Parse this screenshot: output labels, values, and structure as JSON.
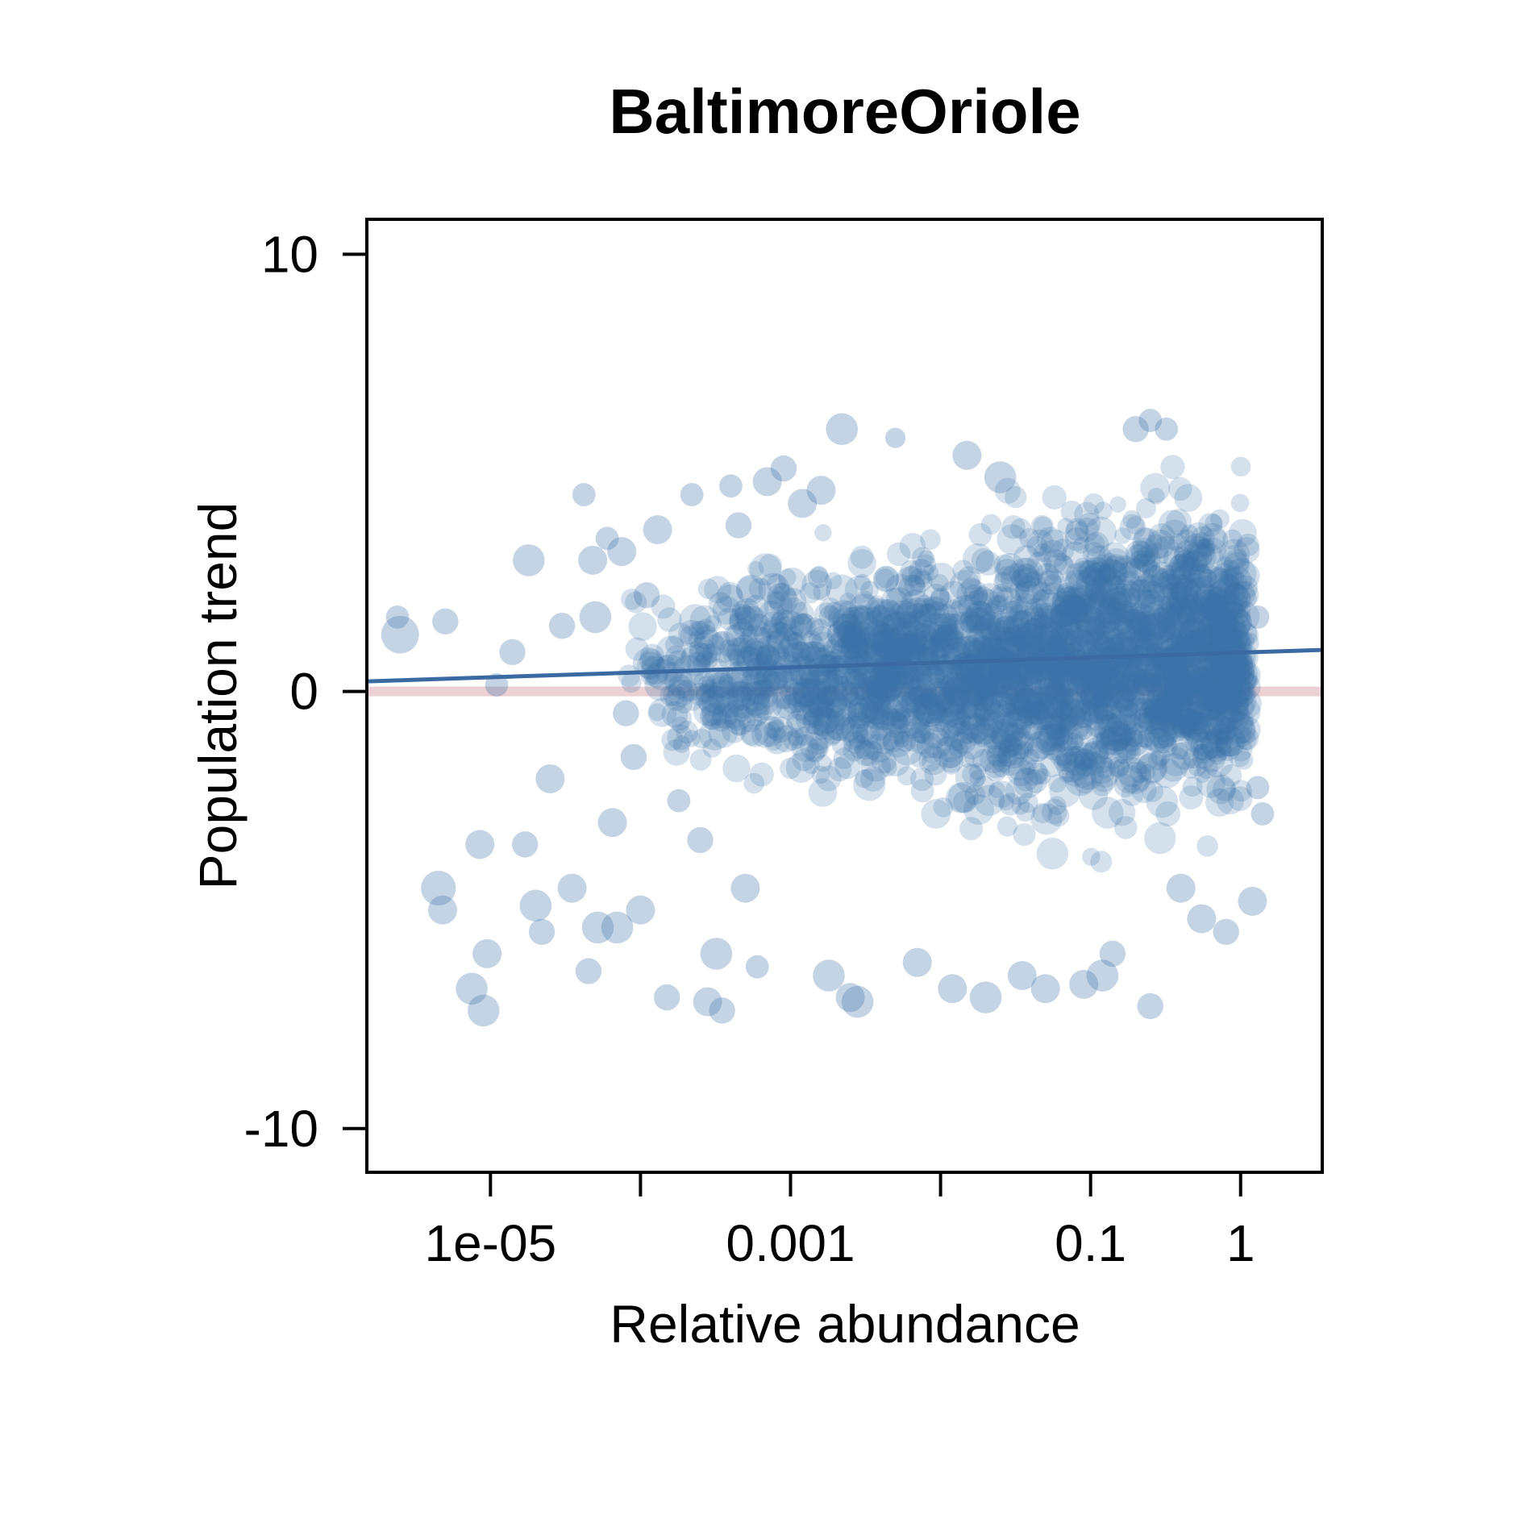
{
  "chart_data": {
    "type": "scatter",
    "title": "BaltimoreOriole",
    "xlabel": "Relative abundance",
    "ylabel": "Population trend",
    "x_scale": "log10",
    "xlim": [
      1.5e-06,
      3.5
    ],
    "ylim": [
      -11,
      10.8
    ],
    "x_ticks": [
      1e-05,
      0.0001,
      0.001,
      0.01,
      0.1,
      1
    ],
    "x_tick_labels": [
      "1e-05",
      "",
      "0.001",
      "",
      "0.1",
      "1"
    ],
    "y_ticks": [
      10,
      0,
      -10
    ],
    "y_tick_labels": [
      "10",
      "0",
      "-10"
    ],
    "grid": false,
    "legend": "none",
    "reference_line": {
      "y": 0,
      "color": "#e8c8cc"
    },
    "trend_line": {
      "x": [
        1.5e-06,
        3.5
      ],
      "y": [
        0.23,
        0.95
      ],
      "color": "#3b6aa3"
    },
    "point_color": "#3d70a8",
    "points": [
      {
        "x": 2.5e-06,
        "y": 1.3,
        "s": 1.3
      },
      {
        "x": 2.4e-06,
        "y": 1.7,
        "s": 0.8
      },
      {
        "x": 5e-06,
        "y": 1.6,
        "s": 0.9
      },
      {
        "x": 4.5e-06,
        "y": -4.5,
        "s": 1.2
      },
      {
        "x": 4.8e-06,
        "y": -5.0,
        "s": 1.0
      },
      {
        "x": 8.5e-06,
        "y": -3.5,
        "s": 1.0
      },
      {
        "x": 9.5e-06,
        "y": -6.0,
        "s": 1.0
      },
      {
        "x": 7.5e-06,
        "y": -6.8,
        "s": 1.1
      },
      {
        "x": 9e-06,
        "y": -7.3,
        "s": 1.1
      },
      {
        "x": 1.1e-05,
        "y": 0.15,
        "s": 0.8
      },
      {
        "x": 1.4e-05,
        "y": 0.9,
        "s": 0.9
      },
      {
        "x": 1.7e-05,
        "y": -3.5,
        "s": 0.9
      },
      {
        "x": 1.8e-05,
        "y": 3.0,
        "s": 1.1
      },
      {
        "x": 2e-05,
        "y": -4.9,
        "s": 1.1
      },
      {
        "x": 2.2e-05,
        "y": -5.5,
        "s": 0.9
      },
      {
        "x": 2.5e-05,
        "y": -2.0,
        "s": 1.0
      },
      {
        "x": 3e-05,
        "y": 1.5,
        "s": 0.9
      },
      {
        "x": 3.5e-05,
        "y": -4.5,
        "s": 1.0
      },
      {
        "x": 4.2e-05,
        "y": 4.5,
        "s": 0.8
      },
      {
        "x": 4.5e-05,
        "y": -6.4,
        "s": 0.9
      },
      {
        "x": 4.8e-05,
        "y": 3.0,
        "s": 1.0
      },
      {
        "x": 5e-05,
        "y": 1.7,
        "s": 1.1
      },
      {
        "x": 5.2e-05,
        "y": -5.4,
        "s": 1.1
      },
      {
        "x": 6e-05,
        "y": 3.5,
        "s": 0.8
      },
      {
        "x": 6.5e-05,
        "y": -3.0,
        "s": 1.0
      },
      {
        "x": 7e-05,
        "y": -5.4,
        "s": 1.1
      },
      {
        "x": 7.5e-05,
        "y": 3.2,
        "s": 1.0
      },
      {
        "x": 8e-05,
        "y": -0.5,
        "s": 0.9
      },
      {
        "x": 9e-05,
        "y": -1.5,
        "s": 0.9
      },
      {
        "x": 0.0001,
        "y": -5.0,
        "s": 1.0
      },
      {
        "x": 0.00011,
        "y": 2.2,
        "s": 0.9
      },
      {
        "x": 0.00013,
        "y": 3.7,
        "s": 1.0
      },
      {
        "x": 0.00015,
        "y": -7.0,
        "s": 0.9
      },
      {
        "x": 0.00018,
        "y": -2.5,
        "s": 0.8
      },
      {
        "x": 0.00022,
        "y": 4.5,
        "s": 0.8
      },
      {
        "x": 0.00025,
        "y": -3.4,
        "s": 0.9
      },
      {
        "x": 0.00028,
        "y": -7.1,
        "s": 1.0
      },
      {
        "x": 0.00032,
        "y": -6.0,
        "s": 1.1
      },
      {
        "x": 0.00035,
        "y": -7.3,
        "s": 0.9
      },
      {
        "x": 0.0004,
        "y": 4.7,
        "s": 0.8
      },
      {
        "x": 0.00045,
        "y": 3.8,
        "s": 0.9
      },
      {
        "x": 0.0005,
        "y": -4.5,
        "s": 1.0
      },
      {
        "x": 0.0006,
        "y": -6.3,
        "s": 0.8
      },
      {
        "x": 0.0007,
        "y": 4.8,
        "s": 1.0
      },
      {
        "x": 0.0009,
        "y": 5.1,
        "s": 0.9
      },
      {
        "x": 0.0012,
        "y": 4.3,
        "s": 1.0
      },
      {
        "x": 0.0016,
        "y": 4.6,
        "s": 1.0
      },
      {
        "x": 0.0018,
        "y": -6.5,
        "s": 1.1
      },
      {
        "x": 0.0022,
        "y": 6.0,
        "s": 1.1
      },
      {
        "x": 0.0025,
        "y": -7.0,
        "s": 1.0
      },
      {
        "x": 0.0028,
        "y": -7.1,
        "s": 1.1
      },
      {
        "x": 0.005,
        "y": 5.8,
        "s": 0.7
      },
      {
        "x": 0.007,
        "y": -6.2,
        "s": 1.0
      },
      {
        "x": 0.012,
        "y": -6.8,
        "s": 1.0
      },
      {
        "x": 0.015,
        "y": 5.4,
        "s": 1.0
      },
      {
        "x": 0.02,
        "y": -7.0,
        "s": 1.1
      },
      {
        "x": 0.025,
        "y": 4.9,
        "s": 1.1
      },
      {
        "x": 0.035,
        "y": -6.5,
        "s": 1.0
      },
      {
        "x": 0.05,
        "y": -6.8,
        "s": 1.0
      },
      {
        "x": 0.09,
        "y": -6.7,
        "s": 1.0
      },
      {
        "x": 0.12,
        "y": -6.5,
        "s": 1.1
      },
      {
        "x": 0.14,
        "y": -6.0,
        "s": 0.9
      },
      {
        "x": 0.2,
        "y": 6.0,
        "s": 0.9
      },
      {
        "x": 0.25,
        "y": 6.2,
        "s": 0.8
      },
      {
        "x": 0.32,
        "y": 6.0,
        "s": 0.8
      },
      {
        "x": 0.25,
        "y": -7.2,
        "s": 0.9
      },
      {
        "x": 0.4,
        "y": -4.5,
        "s": 1.0
      },
      {
        "x": 0.55,
        "y": -5.2,
        "s": 1.0
      },
      {
        "x": 0.8,
        "y": -5.5,
        "s": 0.9
      },
      {
        "x": 1.2,
        "y": -4.8,
        "s": 1.0
      },
      {
        "x": 1.3,
        "y": -2.2,
        "s": 0.8
      },
      {
        "x": 1.4,
        "y": -2.8,
        "s": 0.8
      },
      {
        "x": 1.3,
        "y": 1.7,
        "s": 0.8
      }
    ]
  }
}
